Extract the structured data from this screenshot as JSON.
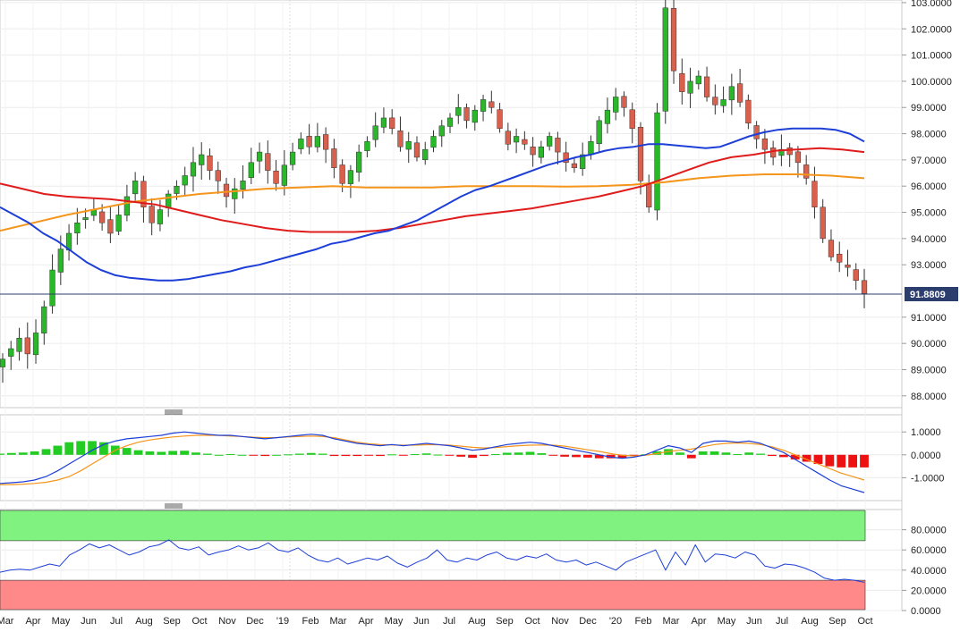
{
  "chart_data": [
    {
      "type": "candlestick",
      "panel": "price",
      "instrument_label": "",
      "last_price_label": "91.8809",
      "last_price": 91.8809,
      "ylim": [
        87.55,
        103.1
      ],
      "y_ticks": [
        {
          "value": 88.0,
          "label": "88.0000"
        },
        {
          "value": 89.0,
          "label": "89.0000"
        },
        {
          "value": 90.0,
          "label": "90.0000"
        },
        {
          "value": 91.0,
          "label": "91.0000"
        },
        {
          "value": 93.0,
          "label": "93.0000"
        },
        {
          "value": 94.0,
          "label": "94.0000"
        },
        {
          "value": 95.0,
          "label": "95.0000"
        },
        {
          "value": 96.0,
          "label": "96.0000"
        },
        {
          "value": 97.0,
          "label": "97.0000"
        },
        {
          "value": 98.0,
          "label": "98.0000"
        },
        {
          "value": 99.0,
          "label": "99.0000"
        },
        {
          "value": 100.0,
          "label": "100.0000"
        },
        {
          "value": 101.0,
          "label": "101.0000"
        },
        {
          "value": 102.0,
          "label": "102.0000"
        },
        {
          "value": 103.0,
          "label": "103.0000"
        }
      ],
      "grid": true,
      "colors": {
        "up": "#2ab82a",
        "down": "#d9604d",
        "last_line": "#2c3e6e",
        "tag": "#2c3e6e"
      },
      "close_path": [
        89.4,
        89.8,
        90.2,
        89.6,
        90.4,
        91.4,
        92.8,
        93.6,
        94.2,
        94.6,
        94.8,
        95.1,
        94.6,
        94.2,
        94.9,
        95.6,
        96.2,
        95.2,
        94.6,
        95.1,
        95.7,
        96.0,
        96.4,
        96.9,
        97.2,
        96.6,
        96.2,
        95.6,
        95.9,
        96.2,
        96.9,
        97.3,
        96.6,
        96.1,
        96.8,
        97.3,
        97.8,
        97.5,
        97.9,
        97.4,
        96.7,
        96.1,
        96.6,
        97.3,
        97.7,
        98.3,
        98.6,
        98.2,
        97.5,
        97.7,
        97.1,
        97.4,
        97.9,
        98.3,
        98.6,
        99.0,
        98.5,
        98.9,
        99.3,
        99.0,
        98.2,
        97.6,
        97.9,
        97.6,
        97.2,
        97.5,
        97.9,
        97.3,
        96.9,
        96.7,
        97.2,
        97.7,
        98.5,
        98.9,
        99.4,
        99.0,
        98.2,
        96.2,
        95.2,
        98.8,
        102.8,
        100.4,
        99.6,
        100.0,
        100.2,
        99.4,
        99.1,
        99.3,
        99.8,
        99.2,
        98.4,
        97.8,
        97.4,
        97.1,
        97.4,
        97.2,
        96.9,
        96.3,
        95.2,
        94.0,
        93.3,
        93.1,
        92.9,
        92.4,
        91.9
      ],
      "sma_50": [
        95.2,
        94.9,
        94.6,
        94.2,
        93.9,
        93.5,
        93.1,
        92.8,
        92.6,
        92.5,
        92.45,
        92.4,
        92.4,
        92.45,
        92.55,
        92.65,
        92.75,
        92.9,
        93.0,
        93.15,
        93.3,
        93.45,
        93.6,
        93.8,
        93.9,
        94.05,
        94.2,
        94.3,
        94.5,
        94.7,
        95.0,
        95.3,
        95.6,
        95.85,
        96.0,
        96.2,
        96.4,
        96.6,
        96.8,
        96.95,
        97.1,
        97.2,
        97.35,
        97.45,
        97.5,
        97.6,
        97.6,
        97.55,
        97.5,
        97.45,
        97.5,
        97.7,
        97.9,
        98.05,
        98.15,
        98.2,
        98.2,
        98.2,
        98.15,
        98.0,
        97.7
      ],
      "sma_100": [
        96.1,
        95.9,
        95.7,
        95.6,
        95.55,
        95.5,
        95.4,
        95.3,
        95.1,
        94.9,
        94.7,
        94.55,
        94.4,
        94.3,
        94.25,
        94.25,
        94.25,
        94.3,
        94.4,
        94.55,
        94.7,
        94.85,
        94.95,
        95.05,
        95.15,
        95.3,
        95.45,
        95.6,
        95.8,
        96.0,
        96.3,
        96.6,
        96.9,
        97.1,
        97.2,
        97.35,
        97.4,
        97.45,
        97.4,
        97.3
      ],
      "sma_200": [
        94.3,
        94.6,
        94.9,
        95.15,
        95.4,
        95.55,
        95.7,
        95.8,
        95.9,
        95.95,
        96.0,
        95.95,
        95.95,
        95.95,
        96.0,
        96.0,
        96.0,
        95.98,
        96.0,
        96.05,
        96.15,
        96.3,
        96.4,
        96.45,
        96.45,
        96.4,
        96.3
      ],
      "sma_labels": [
        "",
        "",
        ""
      ],
      "sma_colors": {
        "sma_50": "#1d3fd8",
        "sma_100": "#e01b1b",
        "sma_200": "#f5951b"
      }
    },
    {
      "type": "macd",
      "panel": "macd",
      "ylim": [
        -2.0,
        1.75
      ],
      "y_ticks": [
        {
          "value": 1.0,
          "label": "1.0000"
        },
        {
          "value": 0.0,
          "label": "0.0000"
        },
        {
          "value": -1.0,
          "label": "-1.0000"
        }
      ],
      "macd_line": [
        -1.25,
        -1.22,
        -1.18,
        -1.1,
        -0.95,
        -0.7,
        -0.4,
        -0.1,
        0.2,
        0.45,
        0.6,
        0.7,
        0.75,
        0.8,
        0.85,
        0.95,
        1.0,
        0.95,
        0.9,
        0.85,
        0.85,
        0.8,
        0.75,
        0.7,
        0.75,
        0.8,
        0.85,
        0.9,
        0.85,
        0.7,
        0.6,
        0.5,
        0.45,
        0.4,
        0.45,
        0.4,
        0.45,
        0.5,
        0.45,
        0.4,
        0.3,
        0.2,
        0.25,
        0.35,
        0.45,
        0.5,
        0.55,
        0.5,
        0.4,
        0.3,
        0.2,
        0.1,
        0.0,
        -0.1,
        -0.15,
        -0.1,
        0.0,
        0.2,
        0.4,
        0.3,
        0.1,
        0.5,
        0.6,
        0.6,
        0.55,
        0.6,
        0.5,
        0.3,
        0.1,
        -0.2,
        -0.5,
        -0.8,
        -1.1,
        -1.35,
        -1.5,
        -1.65
      ],
      "signal_line": [
        -1.3,
        -1.3,
        -1.28,
        -1.25,
        -1.2,
        -1.1,
        -0.95,
        -0.7,
        -0.4,
        -0.1,
        0.2,
        0.4,
        0.55,
        0.65,
        0.72,
        0.78,
        0.82,
        0.85,
        0.85,
        0.85,
        0.82,
        0.8,
        0.77,
        0.75,
        0.75,
        0.78,
        0.8,
        0.82,
        0.8,
        0.75,
        0.65,
        0.55,
        0.48,
        0.45,
        0.43,
        0.42,
        0.42,
        0.44,
        0.44,
        0.42,
        0.38,
        0.33,
        0.3,
        0.32,
        0.36,
        0.4,
        0.42,
        0.43,
        0.42,
        0.38,
        0.3,
        0.22,
        0.15,
        0.05,
        -0.02,
        -0.05,
        -0.02,
        0.05,
        0.15,
        0.2,
        0.25,
        0.35,
        0.45,
        0.5,
        0.52,
        0.5,
        0.45,
        0.35,
        0.2,
        0.0,
        -0.2,
        -0.4,
        -0.6,
        -0.8,
        -0.95,
        -1.1
      ],
      "histogram": [
        0.05,
        0.08,
        0.1,
        0.15,
        0.25,
        0.4,
        0.55,
        0.6,
        0.6,
        0.55,
        0.4,
        0.3,
        0.2,
        0.15,
        0.13,
        0.17,
        0.18,
        0.1,
        0.05,
        0.0,
        0.03,
        0.0,
        -0.02,
        -0.05,
        0.0,
        0.02,
        0.05,
        0.08,
        0.05,
        -0.05,
        -0.05,
        -0.05,
        -0.03,
        -0.05,
        0.02,
        -0.02,
        0.03,
        0.06,
        0.01,
        -0.02,
        -0.08,
        -0.13,
        -0.05,
        0.03,
        0.09,
        0.1,
        0.13,
        0.07,
        -0.02,
        -0.08,
        -0.1,
        -0.12,
        -0.15,
        -0.15,
        -0.13,
        -0.05,
        0.02,
        0.15,
        0.25,
        0.1,
        -0.15,
        0.15,
        0.15,
        0.1,
        0.03,
        0.1,
        0.05,
        -0.05,
        -0.1,
        -0.2,
        -0.3,
        -0.4,
        -0.5,
        -0.55,
        -0.55,
        -0.55
      ],
      "colors": {
        "macd": "#1d3fd8",
        "signal": "#f5951b",
        "hist_up": "#22cc22",
        "hist_down": "#ee1111"
      }
    },
    {
      "type": "rsi",
      "panel": "rsi",
      "ylim": [
        0,
        100
      ],
      "overbought": 70,
      "oversold": 30,
      "y_ticks": [
        {
          "value": 80,
          "label": "80.0000"
        },
        {
          "value": 60,
          "label": "60.0000"
        },
        {
          "value": 40,
          "label": "40.0000"
        },
        {
          "value": 20,
          "label": "20.0000"
        },
        {
          "value": 0,
          "label": "0.0000"
        }
      ],
      "values": [
        38,
        40,
        41,
        40,
        43,
        46,
        44,
        55,
        60,
        66,
        62,
        65,
        60,
        55,
        58,
        63,
        65,
        70,
        62,
        60,
        63,
        55,
        58,
        60,
        64,
        60,
        62,
        67,
        60,
        58,
        62,
        55,
        50,
        48,
        52,
        46,
        49,
        52,
        50,
        54,
        47,
        43,
        48,
        52,
        60,
        50,
        48,
        52,
        50,
        55,
        58,
        52,
        50,
        54,
        52,
        56,
        50,
        48,
        50,
        45,
        48,
        44,
        40,
        48,
        52,
        56,
        60,
        40,
        58,
        45,
        65,
        48,
        56,
        55,
        52,
        58,
        55,
        44,
        42,
        46,
        45,
        42,
        38,
        32,
        30,
        31,
        30,
        28
      ],
      "colors": {
        "line": "#1d3fd8",
        "overbought_zone": "#7ff27f",
        "oversold_zone": "#ff8888"
      }
    }
  ],
  "x_axis": {
    "labels": [
      "Mar",
      "Apr",
      "May",
      "Jun",
      "Jul",
      "Aug",
      "Sep",
      "Oct",
      "Nov",
      "Dec",
      "'19",
      "Feb",
      "Mar",
      "Apr",
      "May",
      "Jun",
      "Jul",
      "Aug",
      "Sep",
      "Oct",
      "Nov",
      "Dec",
      "'20",
      "Feb",
      "Mar",
      "Apr",
      "May",
      "Jun",
      "Jul",
      "Aug",
      "Sep",
      "Oct"
    ]
  }
}
